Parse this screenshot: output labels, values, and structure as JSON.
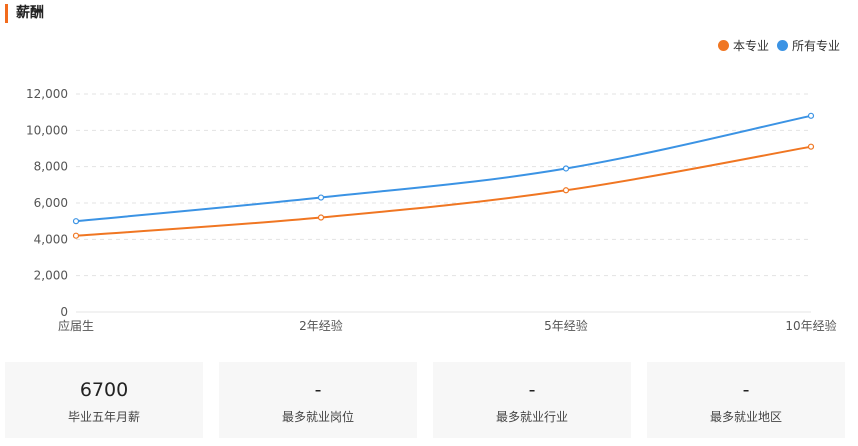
{
  "section": {
    "title": "薪酬"
  },
  "colors": {
    "accent": "#f26b1d",
    "series_major": "#f07622",
    "series_all": "#3b93e4"
  },
  "chart_data": {
    "type": "line",
    "categories": [
      "应届生",
      "2年经验",
      "5年经验",
      "10年经验"
    ],
    "series": [
      {
        "name": "本专业",
        "color": "#f07622",
        "values": [
          4200,
          5200,
          6700,
          9100
        ]
      },
      {
        "name": "所有专业",
        "color": "#3b93e4",
        "values": [
          5000,
          6300,
          7900,
          10800
        ]
      }
    ],
    "ylim": [
      0,
      12000
    ],
    "yticks": [
      0,
      2000,
      4000,
      6000,
      8000,
      10000,
      12000
    ],
    "ytick_labels": [
      "0",
      "2,000",
      "4,000",
      "6,000",
      "8,000",
      "10,000",
      "12,000"
    ],
    "grid": true,
    "legend": "top-right"
  },
  "cards": [
    {
      "value": "6700",
      "label": "毕业五年月薪"
    },
    {
      "value": "-",
      "label": "最多就业岗位"
    },
    {
      "value": "-",
      "label": "最多就业行业"
    },
    {
      "value": "-",
      "label": "最多就业地区"
    }
  ]
}
